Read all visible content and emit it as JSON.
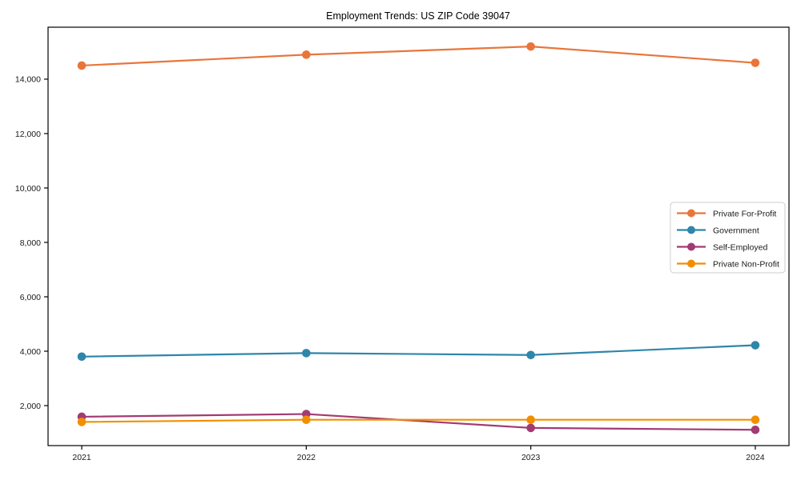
{
  "chart_data": {
    "type": "line",
    "title": "Employment Trends: US ZIP Code 39047",
    "x": [
      2021,
      2022,
      2023,
      2024
    ],
    "xtick_labels": [
      "2021",
      "2022",
      "2023",
      "2024"
    ],
    "series": [
      {
        "name": "Private For-Profit",
        "color": "#E8763B",
        "values": [
          14500,
          14900,
          15200,
          14600
        ]
      },
      {
        "name": "Government",
        "color": "#2E86AB",
        "values": [
          3800,
          3930,
          3860,
          4220
        ]
      },
      {
        "name": "Self-Employed",
        "color": "#A23B72",
        "values": [
          1590,
          1690,
          1180,
          1110
        ]
      },
      {
        "name": "Private Non-Profit",
        "color": "#F18F01",
        "values": [
          1400,
          1480,
          1480,
          1480
        ]
      }
    ],
    "yticks": [
      2000,
      4000,
      6000,
      8000,
      10000,
      12000,
      14000
    ],
    "ytick_labels": [
      "2,000",
      "4,000",
      "6,000",
      "8,000",
      "10,000",
      "12,000",
      "14,000"
    ],
    "xlim": [
      2020.85,
      2024.15
    ],
    "ylim": [
      530,
      15910
    ],
    "xlabel": "",
    "ylabel": "",
    "grid": false,
    "marker": "circle",
    "legend_position": "center right",
    "frame_color": "#000000",
    "legend_border_color": "#cccccc",
    "legend_background": "#ffffff"
  }
}
